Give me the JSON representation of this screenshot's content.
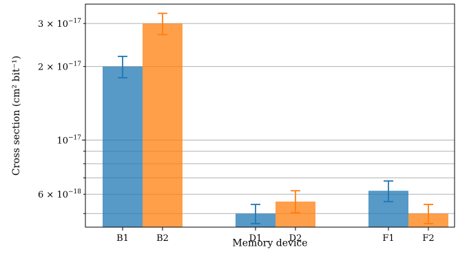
{
  "chart_data": {
    "type": "bar",
    "xlabel": "Memory device",
    "ylabel": "Cross section (cm² bit⁻¹)",
    "yscale": "log",
    "ylim": [
      4.4e-18,
      3.6e-17
    ],
    "grid": "y-major-and-minor",
    "categories": [
      "B1",
      "B2",
      "D1",
      "D2",
      "F1",
      "F2"
    ],
    "bars": [
      {
        "category": "B1",
        "value": 2e-17,
        "err_low": 1.8e-17,
        "err_high": 2.2e-17,
        "color": "#1f77b4"
      },
      {
        "category": "B2",
        "value": 3e-17,
        "err_low": 2.7e-17,
        "err_high": 3.3e-17,
        "color": "#ff7f0e"
      },
      {
        "category": "D1",
        "value": 5e-18,
        "err_low": 4.55e-18,
        "err_high": 5.45e-18,
        "color": "#1f77b4"
      },
      {
        "category": "D2",
        "value": 5.6e-18,
        "err_low": 5.05e-18,
        "err_high": 6.2e-18,
        "color": "#ff7f0e"
      },
      {
        "category": "F1",
        "value": 6.2e-18,
        "err_low": 5.6e-18,
        "err_high": 6.8e-18,
        "color": "#1f77b4"
      },
      {
        "category": "F2",
        "value": 5e-18,
        "err_low": 4.55e-18,
        "err_high": 5.45e-18,
        "color": "#ff7f0e"
      }
    ],
    "yticks_major": [
      {
        "value": 1e-17,
        "mant": "10",
        "exp": "−17"
      }
    ],
    "yticks_minor": [
      {
        "value": 3e-17,
        "mant": "3 × 10",
        "exp": "−17"
      },
      {
        "value": 2e-17,
        "mant": "2 × 10",
        "exp": "−17"
      },
      {
        "value": 6e-18,
        "mant": "6 × 10",
        "exp": "−18"
      }
    ],
    "minor_unlabeled": [
      9e-18,
      8e-18,
      7e-18,
      5e-18
    ]
  }
}
